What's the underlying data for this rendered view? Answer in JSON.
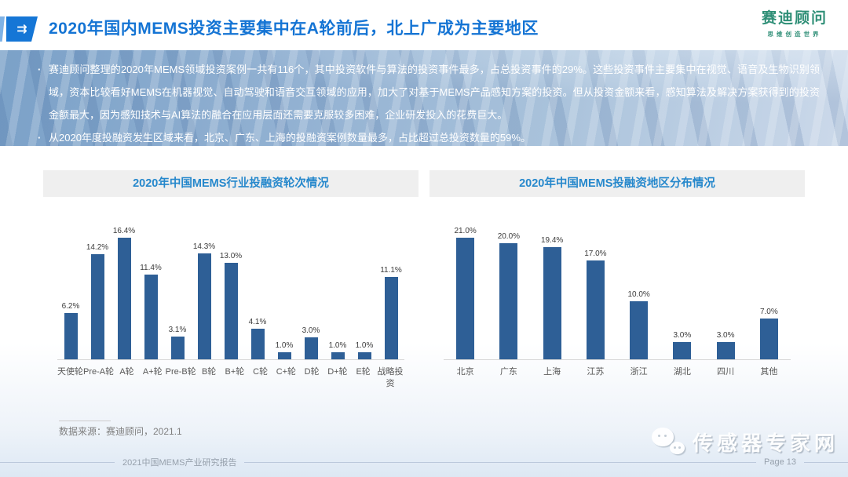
{
  "header": {
    "arrow_glyph": "⇉",
    "title": "2020年国内MEMS投资主要集中在A轮前后，北上广成为主要地区",
    "logo_name": "赛迪顾问",
    "logo_tagline": "思维创造世界",
    "logo_color": "#2f8f77",
    "title_color": "#1474d4"
  },
  "summary": {
    "bullets": [
      "赛迪顾问整理的2020年MEMS领域投资案例一共有116个，其中投资软件与算法的投资事件最多，占总投资事件的29%。这些投资事件主要集中在视觉、语音及生物识别领域，资本比较看好MEMS在机器视觉、自动驾驶和语音交互领域的应用，加大了对基于MEMS产品感知方案的投资。但从投资金额来看，感知算法及解决方案获得到的投资金额最大，因为感知技术与AI算法的融合在应用层面还需要克服较多困难，企业研发投入的花费巨大。",
      "从2020年度投融资发生区域来看，北京、广东、上海的投融资案例数量最多，占比超过总投资数量的59%。"
    ]
  },
  "chart_data": [
    {
      "type": "bar",
      "title": "2020年中国MEMS行业投融资轮次情况",
      "categories": [
        "天使轮",
        "Pre-A轮",
        "A轮",
        "A+轮",
        "Pre-B轮",
        "B轮",
        "B+轮",
        "C轮",
        "C+轮",
        "D轮",
        "D+轮",
        "E轮",
        "战略投资"
      ],
      "values": [
        6.2,
        14.2,
        16.4,
        11.4,
        3.1,
        14.3,
        13.0,
        4.1,
        1.0,
        3.0,
        1.0,
        1.0,
        11.1
      ],
      "data_labels": [
        "6.2%",
        "14.2%",
        "16.4%",
        "11.4%",
        "3.1%",
        "14.3%",
        "13.0%",
        "4.1%",
        "1.0%",
        "3.0%",
        "1.0%",
        "1.0%",
        "11.1%"
      ],
      "unit": "%",
      "ylim": [
        0,
        18
      ],
      "grid": false,
      "legend": false,
      "bar_color": "#2e5f96",
      "xlabel": "",
      "ylabel": ""
    },
    {
      "type": "bar",
      "title": "2020年中国MEMS投融资地区分布情况",
      "categories": [
        "北京",
        "广东",
        "上海",
        "江苏",
        "浙江",
        "湖北",
        "四川",
        "其他"
      ],
      "values": [
        21.0,
        20.0,
        19.4,
        17.0,
        10.0,
        3.0,
        3.0,
        7.0
      ],
      "data_labels": [
        "21.0%",
        "20.0%",
        "19.4%",
        "17.0%",
        "10.0%",
        "3.0%",
        "3.0%",
        "7.0%"
      ],
      "unit": "%",
      "ylim": [
        0,
        23
      ],
      "grid": false,
      "legend": false,
      "bar_color": "#2e5f96",
      "xlabel": "",
      "ylabel": ""
    }
  ],
  "source_note": "数据来源：赛迪顾问，2021.1",
  "watermark": {
    "icon": "wechat-icon",
    "text": "传感器专家网"
  },
  "footer": {
    "report_title": "2021中国MEMS产业研究报告",
    "page_label": "Page 13"
  }
}
